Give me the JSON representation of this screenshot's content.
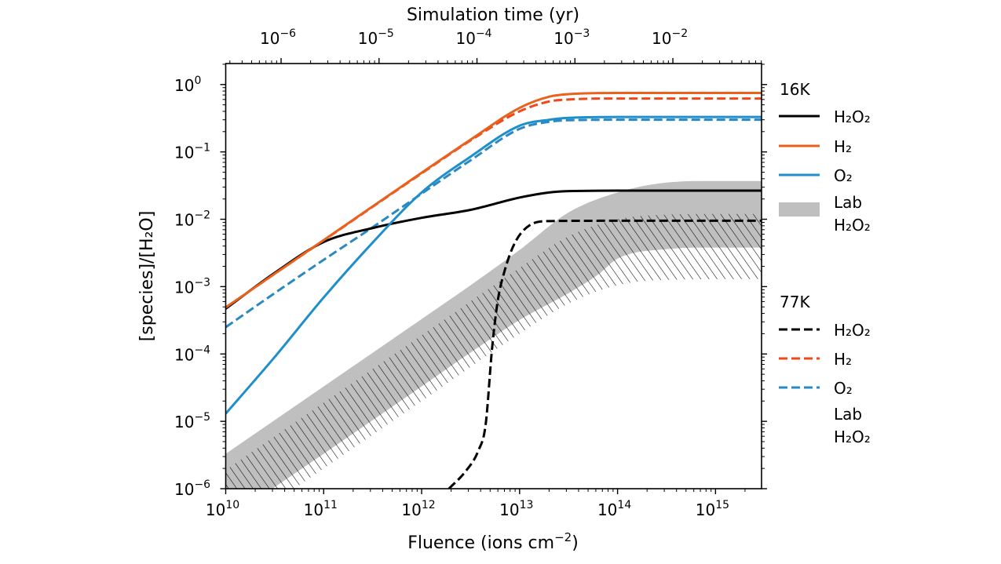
{
  "chart_data": {
    "type": "line",
    "title": "",
    "xlabel": "Fluence (ions cm",
    "xlabel_sup": "−2",
    "xlabel_end": ")",
    "ylabel": "[species]/[H₂O]",
    "top_xlabel": "Simulation time (yr)",
    "xscale": "log",
    "yscale": "log",
    "xlim": [
      10000000000.0,
      2950000000000000.0
    ],
    "ylim": [
      1e-06,
      2.05
    ],
    "top_xlim": [
      2.72e-07,
      0.0804
    ],
    "grid": false,
    "legend_placement": "outside-right",
    "x_ticks": [
      {
        "base": "10",
        "exp": "10",
        "value": 10000000000.0
      },
      {
        "base": "10",
        "exp": "11",
        "value": 100000000000.0
      },
      {
        "base": "10",
        "exp": "12",
        "value": 1000000000000.0
      },
      {
        "base": "10",
        "exp": "13",
        "value": 10000000000000.0
      },
      {
        "base": "10",
        "exp": "14",
        "value": 100000000000000.0
      },
      {
        "base": "10",
        "exp": "15",
        "value": 1000000000000000.0
      }
    ],
    "y_ticks": [
      {
        "base": "10",
        "exp": "0",
        "value": 1
      },
      {
        "base": "10",
        "exp": "−1",
        "value": 0.1
      },
      {
        "base": "10",
        "exp": "−2",
        "value": 0.01
      },
      {
        "base": "10",
        "exp": "−3",
        "value": 0.001
      },
      {
        "base": "10",
        "exp": "−4",
        "value": 0.0001
      },
      {
        "base": "10",
        "exp": "−5",
        "value": 1e-05
      },
      {
        "base": "10",
        "exp": "−6",
        "value": 1e-06
      }
    ],
    "top_ticks": [
      {
        "base": "10",
        "exp": "−6",
        "value": 1e-06
      },
      {
        "base": "10",
        "exp": "−5",
        "value": 1e-05
      },
      {
        "base": "10",
        "exp": "−4",
        "value": 0.0001
      },
      {
        "base": "10",
        "exp": "−3",
        "value": 0.001
      },
      {
        "base": "10",
        "exp": "−2",
        "value": 0.01
      }
    ],
    "series": [
      {
        "group": "16K",
        "name": "H₂O₂",
        "color": "#000000",
        "dash": "solid",
        "x": [
          10000000000.0,
          31600000000.0,
          100000000000.0,
          316000000000.0,
          1000000000000.0,
          3160000000000.0,
          10000000000000.0,
          20000000000000.0,
          31600000000000.0,
          100000000000000.0,
          1000000000000000.0,
          2950000000000000.0
        ],
        "y": [
          0.00047,
          0.0016,
          0.0046,
          0.0074,
          0.0105,
          0.0138,
          0.021,
          0.025,
          0.0262,
          0.0266,
          0.0266,
          0.0266
        ]
      },
      {
        "group": "16K",
        "name": "H₂",
        "color": "#e8621e",
        "dash": "solid",
        "x": [
          10000000000.0,
          31600000000.0,
          100000000000.0,
          316000000000.0,
          1000000000000.0,
          3160000000000.0,
          10000000000000.0,
          20000000000000.0,
          31600000000000.0,
          100000000000000.0,
          1000000000000000.0,
          2950000000000000.0
        ],
        "y": [
          0.00049,
          0.00155,
          0.0049,
          0.0155,
          0.049,
          0.152,
          0.45,
          0.66,
          0.72,
          0.75,
          0.75,
          0.75
        ]
      },
      {
        "group": "16K",
        "name": "O₂",
        "color": "#1f8fcc",
        "dash": "solid",
        "x": [
          10000000000.0,
          31600000000.0,
          100000000000.0,
          316000000000.0,
          1000000000000.0,
          3160000000000.0,
          10000000000000.0,
          20000000000000.0,
          31600000000000.0,
          100000000000000.0,
          1000000000000000.0,
          2950000000000000.0
        ],
        "y": [
          1.3e-05,
          9e-05,
          0.00069,
          0.0045,
          0.025,
          0.085,
          0.245,
          0.3,
          0.32,
          0.33,
          0.33,
          0.33
        ]
      },
      {
        "group": "77K",
        "name": "H₂O₂",
        "color": "#000000",
        "dash": "dashed",
        "x": [
          1900000000000.0,
          2800000000000.0,
          3800000000000.0,
          4500000000000.0,
          5250000000000.0,
          6000000000000.0,
          7100000000000.0,
          8900000000000.0,
          12600000000000.0,
          20000000000000.0,
          100000000000000.0,
          2950000000000000.0
        ],
        "y": [
          1e-06,
          1.8e-06,
          3.7e-06,
          8.9e-06,
          0.000126,
          0.00063,
          0.0018,
          0.0044,
          0.0081,
          0.0094,
          0.0095,
          0.0095
        ]
      },
      {
        "group": "77K",
        "name": "H₂",
        "color": "#f0481a",
        "dash": "dashed",
        "x": [
          10000000000.0,
          31600000000.0,
          100000000000.0,
          316000000000.0,
          1000000000000.0,
          3160000000000.0,
          10000000000000.0,
          20000000000000.0,
          31600000000000.0,
          100000000000000.0,
          1000000000000000.0,
          2950000000000000.0
        ],
        "y": [
          0.00049,
          0.00155,
          0.00485,
          0.0153,
          0.048,
          0.148,
          0.4,
          0.56,
          0.6,
          0.62,
          0.62,
          0.62
        ]
      },
      {
        "group": "77K",
        "name": "O₂",
        "color": "#2a88c2",
        "dash": "dashed",
        "x": [
          10000000000.0,
          31600000000.0,
          100000000000.0,
          316000000000.0,
          1000000000000.0,
          3160000000000.0,
          10000000000000.0,
          20000000000000.0,
          31600000000000.0,
          100000000000000.0,
          1000000000000000.0,
          2950000000000000.0
        ],
        "y": [
          0.00025,
          0.0008,
          0.0025,
          0.0076,
          0.024,
          0.075,
          0.22,
          0.28,
          0.295,
          0.3,
          0.3,
          0.3
        ]
      }
    ],
    "bands": [
      {
        "group": "16K",
        "name_line1": "Lab",
        "name_line2": "H₂O₂",
        "style": "filled",
        "color": "#bfbfbf",
        "upper": {
          "x": [
            10000000000.0,
            100000000000.0,
            1000000000000.0,
            3160000000000.0,
            10000000000000.0,
            31600000000000.0,
            100000000000000.0,
            316000000000000.0,
            1000000000000000.0,
            2950000000000000.0
          ],
          "y": [
            3.3e-06,
            3.3e-05,
            0.00033,
            0.00105,
            0.0035,
            0.0126,
            0.025,
            0.035,
            0.037,
            0.037
          ]
        },
        "lower": {
          "x": [
            10000000000.0,
            30000000000.0,
            100000000000.0,
            1000000000000.0,
            3160000000000.0,
            10000000000000.0,
            31600000000000.0,
            63000000000000.0,
            100000000000000.0,
            316000000000000.0,
            1000000000000000.0,
            2950000000000000.0
          ],
          "y": [
            3.3e-07,
            1e-06,
            3.3e-06,
            3.3e-05,
            0.000105,
            0.00032,
            0.0008,
            0.0015,
            0.0026,
            0.0036,
            0.0038,
            0.0038
          ]
        }
      },
      {
        "group": "77K",
        "name_line1": "Lab",
        "name_line2": "H₂O₂",
        "style": "hatched",
        "color": "#000000",
        "upper": {
          "x": [
            10000000000.0,
            100000000000.0,
            1000000000000.0,
            10000000000000.0,
            31600000000000.0,
            100000000000000.0,
            316000000000000.0,
            1000000000000000.0,
            2950000000000000.0
          ],
          "y": [
            1.9e-06,
            1.9e-05,
            0.00019,
            0.0019,
            0.0056,
            0.01,
            0.0117,
            0.012,
            0.012
          ]
        },
        "lower": {
          "x": [
            10000000000.0,
            100000000000.0,
            1000000000000.0,
            10000000000000.0,
            31600000000000.0,
            100000000000000.0,
            316000000000000.0,
            2950000000000000.0
          ],
          "y": [
            2e-07,
            2e-06,
            2e-05,
            0.0002,
            0.00056,
            0.00105,
            0.00126,
            0.0013
          ]
        }
      }
    ],
    "legend": {
      "group_16K": "16K",
      "group_77K": "77K"
    }
  }
}
